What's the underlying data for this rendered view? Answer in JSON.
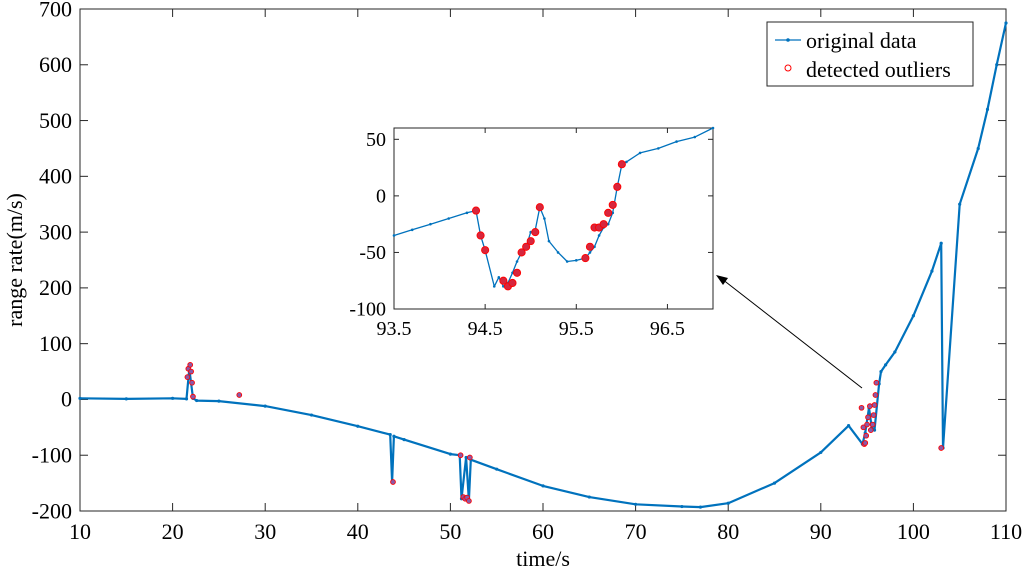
{
  "colors": {
    "line": "#0072bd",
    "outlier": "#ff0000",
    "outlier_fill": "#d7263d",
    "axis": "#262626"
  },
  "chart_data": [
    {
      "type": "line",
      "xlabel": "time/s",
      "ylabel": "range rate(m/s)",
      "xlim": [
        10,
        110
      ],
      "ylim": [
        -200,
        700
      ],
      "xticks": [
        10,
        20,
        30,
        40,
        50,
        60,
        70,
        80,
        90,
        100,
        110
      ],
      "yticks": [
        -200,
        -100,
        0,
        100,
        200,
        300,
        400,
        500,
        600,
        700
      ],
      "grid": false,
      "legend_position": "top-right",
      "series": [
        {
          "name": "original data",
          "style": "line with dot markers",
          "x": [
            10,
            15,
            20,
            21.5,
            21.8,
            22.2,
            22.6,
            25,
            30,
            35,
            40,
            43.5,
            43.7,
            43.9,
            45,
            50,
            51,
            51.2,
            51.7,
            52,
            52.2,
            55,
            60,
            65,
            70,
            75,
            77,
            80,
            85,
            90,
            93,
            94.5,
            94.8,
            95.2,
            95.5,
            95.8,
            96.3,
            96.5,
            97,
            98,
            100,
            102,
            103,
            103.2,
            105,
            107,
            108,
            109,
            110
          ],
          "y": [
            2,
            1,
            2,
            1,
            55,
            2,
            -2,
            -3,
            -12,
            -28,
            -48,
            -63,
            -148,
            -66,
            -72,
            -98,
            -100,
            -178,
            -104,
            -181,
            -108,
            -125,
            -155,
            -175,
            -188,
            -192,
            -193,
            -186,
            -150,
            -95,
            -47,
            -80,
            -60,
            -15,
            -50,
            -55,
            28,
            50,
            62,
            85,
            150,
            230,
            280,
            -87,
            350,
            450,
            520,
            600,
            675
          ]
        },
        {
          "name": "detected outliers",
          "style": "red circle markers",
          "x": [
            21.6,
            21.7,
            21.9,
            22.0,
            22.1,
            22.2,
            27.2,
            43.8,
            51.1,
            51.4,
            51.6,
            51.8,
            52.0,
            52.1,
            94.4,
            94.6,
            94.7,
            94.8,
            94.9,
            95.0,
            95.1,
            95.3,
            95.4,
            95.6,
            95.7,
            95.8,
            95.9,
            96.0,
            103.0
          ],
          "y": [
            40,
            55,
            62,
            50,
            30,
            5,
            8,
            -148,
            -100,
            -175,
            -178,
            -176,
            -182,
            -104,
            -15,
            -50,
            -80,
            -78,
            -65,
            -45,
            -32,
            -12,
            -55,
            -45,
            -28,
            -10,
            8,
            30,
            -87
          ]
        }
      ]
    },
    {
      "type": "line",
      "role": "inset",
      "xlim": [
        93.5,
        97
      ],
      "ylim": [
        -100,
        60
      ],
      "xticks": [
        93.5,
        94.5,
        95.5,
        96.5
      ],
      "xtick_labels": [
        "93.5",
        "94.5",
        "95.5",
        "96.5"
      ],
      "yticks": [
        -100,
        -50,
        0,
        50
      ],
      "grid": false,
      "series": [
        {
          "name": "original data",
          "x": [
            93.5,
            93.7,
            93.9,
            94.1,
            94.3,
            94.4,
            94.45,
            94.5,
            94.6,
            94.65,
            94.7,
            94.75,
            94.8,
            94.85,
            94.9,
            94.95,
            95.0,
            95.05,
            95.1,
            95.15,
            95.2,
            95.3,
            95.4,
            95.5,
            95.6,
            95.65,
            95.7,
            95.75,
            95.8,
            95.85,
            95.9,
            95.95,
            96.0,
            96.05,
            96.2,
            96.4,
            96.6,
            96.8,
            97.0
          ],
          "y": [
            -35,
            -30,
            -25,
            -20,
            -15,
            -13,
            -35,
            -48,
            -80,
            -72,
            -80,
            -77,
            -68,
            -58,
            -50,
            -45,
            -32,
            -30,
            -10,
            -20,
            -40,
            -50,
            -58,
            -57,
            -55,
            -50,
            -45,
            -35,
            -28,
            -25,
            -15,
            8,
            28,
            30,
            38,
            42,
            48,
            52,
            60
          ]
        },
        {
          "name": "detected outliers",
          "x": [
            94.4,
            94.45,
            94.5,
            94.7,
            94.75,
            94.8,
            94.85,
            94.9,
            94.95,
            95.0,
            95.05,
            95.1,
            95.6,
            95.65,
            95.7,
            95.75,
            95.8,
            95.85,
            95.9,
            95.95,
            96.0
          ],
          "y": [
            -13,
            -35,
            -48,
            -75,
            -80,
            -77,
            -68,
            -50,
            -45,
            -40,
            -32,
            -10,
            -55,
            -45,
            -28,
            -28,
            -25,
            -15,
            -8,
            8,
            28
          ]
        }
      ]
    }
  ]
}
